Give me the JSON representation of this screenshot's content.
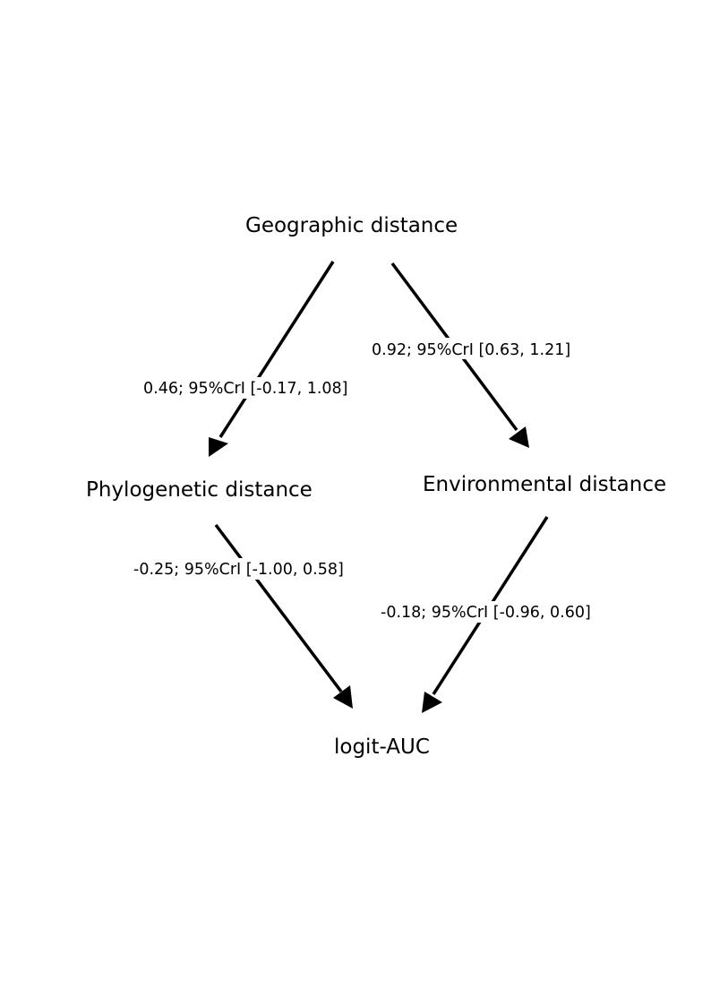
{
  "nodes": {
    "geographic": "Geographic distance",
    "phylogenetic": "Phylogenetic distance",
    "environmental": "Environmental distance",
    "outcome": "logit-AUC"
  },
  "edges": [
    {
      "from": "geographic",
      "to": "phylogenetic",
      "label": "0.46; 95%CrI [-0.17, 1.08]"
    },
    {
      "from": "geographic",
      "to": "environmental",
      "label": "0.92; 95%CrI [0.63, 1.21]"
    },
    {
      "from": "phylogenetic",
      "to": "outcome",
      "label": "-0.25; 95%CrI [-1.00, 0.58]"
    },
    {
      "from": "environmental",
      "to": "outcome",
      "label": "-0.18; 95%CrI [-0.96, 0.60]"
    }
  ],
  "colors": {
    "line": "#000000",
    "background": "#ffffff"
  }
}
